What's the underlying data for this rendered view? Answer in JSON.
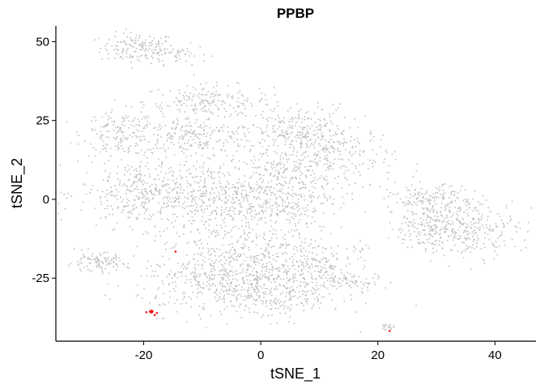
{
  "chart_data": {
    "type": "scatter",
    "title": "PPBP",
    "xlabel": "tSNE_1",
    "ylabel": "tSNE_2",
    "xlim": [
      -35,
      47
    ],
    "ylim": [
      -45,
      55
    ],
    "x_ticks": [
      -20,
      0,
      20,
      40
    ],
    "y_ticks": [
      -25,
      0,
      25,
      50
    ],
    "x_tick_labels": [
      "-20",
      "0",
      "20",
      "40"
    ],
    "y_tick_labels": [
      "-25",
      "0",
      "25",
      "50"
    ],
    "grid": false,
    "legend": "none",
    "colors": {
      "low": "#bebebe",
      "high": "#ff0000",
      "axis": "#000000"
    },
    "clusters": [
      {
        "cx": -21,
        "cy": 48,
        "sx": 3.2,
        "sy": 2.4,
        "n": 150,
        "expr": 0
      },
      {
        "cx": -14,
        "cy": 46,
        "sx": 2.5,
        "sy": 1.6,
        "n": 45,
        "expr": 0
      },
      {
        "cx": -9,
        "cy": 31,
        "sx": 5.5,
        "sy": 2.6,
        "n": 190,
        "expr": 0
      },
      {
        "cx": -24,
        "cy": 21,
        "sx": 3.2,
        "sy": 3.5,
        "n": 150,
        "expr": 0
      },
      {
        "cx": -12,
        "cy": 20,
        "sx": 5.5,
        "sy": 3.2,
        "n": 220,
        "expr": 0
      },
      {
        "cx": 6,
        "cy": 21,
        "sx": 4.5,
        "sy": 4.5,
        "n": 240,
        "expr": 0
      },
      {
        "cx": 13,
        "cy": 13,
        "sx": 5.0,
        "sy": 5.5,
        "n": 220,
        "expr": 0
      },
      {
        "cx": -20,
        "cy": 2,
        "sx": 5.5,
        "sy": 5.5,
        "n": 380,
        "expr": 0
      },
      {
        "cx": -7,
        "cy": 0,
        "sx": 5.5,
        "sy": 6.5,
        "n": 380,
        "expr": 0
      },
      {
        "cx": 3,
        "cy": 3,
        "sx": 4.5,
        "sy": 7.0,
        "n": 380,
        "expr": 0
      },
      {
        "cx": 1,
        "cy": -18,
        "sx": 6.5,
        "sy": 5.5,
        "n": 360,
        "expr": 0
      },
      {
        "cx": -8,
        "cy": -26,
        "sx": 6.5,
        "sy": 5.0,
        "n": 360,
        "expr": 0
      },
      {
        "cx": 3,
        "cy": -30,
        "sx": 5.5,
        "sy": 4.0,
        "n": 260,
        "expr": 0
      },
      {
        "cx": 9,
        "cy": -21,
        "sx": 3.0,
        "sy": 3.0,
        "n": 60,
        "expr": 0
      },
      {
        "cx": 14,
        "cy": -26,
        "sx": 3.2,
        "sy": 1.8,
        "n": 90,
        "expr": 0
      },
      {
        "cx": 17,
        "cy": -16,
        "sx": 0.8,
        "sy": 0.8,
        "n": 10,
        "expr": 0
      },
      {
        "cx": 29,
        "cy": 0,
        "sx": 3.5,
        "sy": 2.2,
        "n": 150,
        "expr": 0
      },
      {
        "cx": 35,
        "cy": -9,
        "sx": 4.5,
        "sy": 4.5,
        "n": 320,
        "expr": 0
      },
      {
        "cx": 27,
        "cy": -9,
        "sx": 2.5,
        "sy": 3.0,
        "n": 90,
        "expr": 0
      },
      {
        "cx": -28,
        "cy": -20,
        "sx": 2.6,
        "sy": 1.5,
        "n": 110,
        "expr": 0
      },
      {
        "cx": 21.5,
        "cy": -40.5,
        "sx": 0.6,
        "sy": 0.4,
        "n": 18,
        "expr": 0
      },
      {
        "cx": -18.8,
        "cy": -35.6,
        "sx": 0.6,
        "sy": 0.4,
        "n": 8,
        "expr": 1
      },
      {
        "cx": 21.8,
        "cy": -41.8,
        "sx": 0.1,
        "sy": 0.1,
        "n": 1,
        "expr": 1
      },
      {
        "cx": -14.5,
        "cy": -16.5,
        "sx": 0.1,
        "sy": 0.1,
        "n": 1,
        "expr": 1
      }
    ]
  }
}
